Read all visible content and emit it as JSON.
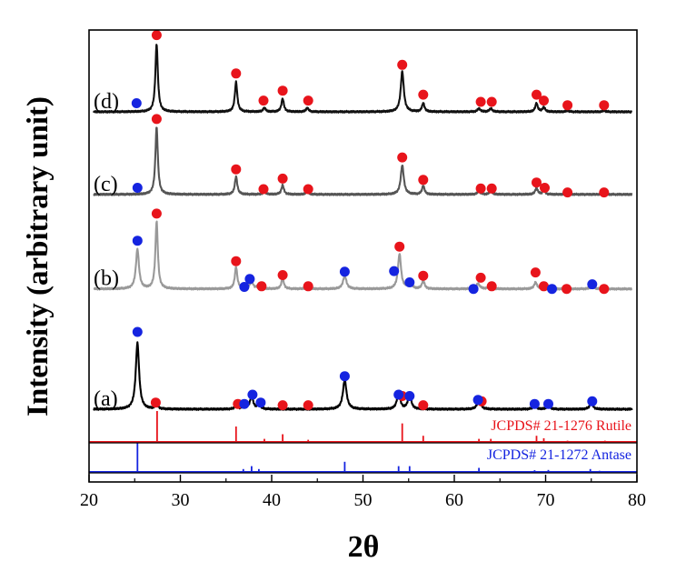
{
  "chart_data": {
    "type": "line",
    "title": "",
    "xlabel": "2θ",
    "ylabel": "Intensity (arbitrary unit)",
    "xlim": [
      20,
      80
    ],
    "xticks": [
      "20",
      "30",
      "40",
      "50",
      "60",
      "70",
      "80"
    ],
    "colors": {
      "rutile": "#e8141b",
      "anatase": "#1524e0",
      "curve_a": "#000000",
      "curve_b": "#999999",
      "curve_c": "#555555",
      "curve_d": "#111111"
    },
    "series": [
      {
        "name": "(a)",
        "baseline": 0.0,
        "peaks": [
          [
            25.3,
            1.0,
            0.22
          ],
          [
            27.4,
            0.09,
            0.15
          ],
          [
            36.1,
            0.06,
            0.15
          ],
          [
            37.0,
            0.07,
            0.2
          ],
          [
            37.8,
            0.2,
            0.2
          ],
          [
            38.6,
            0.08,
            0.18
          ],
          [
            48.0,
            0.44,
            0.24
          ],
          [
            53.9,
            0.27,
            0.2
          ],
          [
            55.1,
            0.24,
            0.2
          ],
          [
            62.7,
            0.15,
            0.22
          ],
          [
            68.8,
            0.06,
            0.2
          ],
          [
            70.3,
            0.06,
            0.2
          ],
          [
            75.0,
            0.1,
            0.2
          ]
        ],
        "rutile_markers": [
          [
            27.3,
            0.1
          ],
          [
            36.3,
            0.08
          ],
          [
            41.2,
            0.06
          ],
          [
            44.0,
            0.06
          ],
          [
            54.3,
            0.2
          ],
          [
            56.6,
            0.06
          ],
          [
            63.0,
            0.12
          ]
        ],
        "anatase_markers": [
          [
            25.3,
            1.17
          ],
          [
            37.0,
            0.08
          ],
          [
            37.9,
            0.22
          ],
          [
            38.8,
            0.1
          ],
          [
            48.0,
            0.5
          ],
          [
            53.9,
            0.22
          ],
          [
            55.1,
            0.2
          ],
          [
            62.6,
            0.14
          ],
          [
            68.8,
            0.08
          ],
          [
            70.3,
            0.08
          ],
          [
            75.1,
            0.12
          ]
        ]
      },
      {
        "name": "(b)",
        "baseline": 1.82,
        "peaks": [
          [
            25.3,
            0.6,
            0.2
          ],
          [
            27.4,
            1.02,
            0.16
          ],
          [
            36.1,
            0.33,
            0.16
          ],
          [
            37.0,
            0.06,
            0.2
          ],
          [
            37.8,
            0.11,
            0.2
          ],
          [
            38.6,
            0.06,
            0.18
          ],
          [
            41.2,
            0.16,
            0.16
          ],
          [
            43.9,
            0.05,
            0.16
          ],
          [
            48.0,
            0.2,
            0.22
          ],
          [
            54.0,
            0.53,
            0.2
          ],
          [
            55.1,
            0.13,
            0.2
          ],
          [
            56.6,
            0.13,
            0.16
          ],
          [
            62.6,
            0.08,
            0.22
          ],
          [
            63.9,
            0.05,
            0.2
          ],
          [
            68.9,
            0.1,
            0.18
          ],
          [
            69.8,
            0.06,
            0.18
          ],
          [
            75.1,
            0.05,
            0.2
          ]
        ],
        "rutile_markers": [
          [
            27.4,
            1.14
          ],
          [
            36.1,
            0.42
          ],
          [
            38.9,
            0.04
          ],
          [
            41.2,
            0.21
          ],
          [
            44.0,
            0.04
          ],
          [
            54.0,
            0.64
          ],
          [
            56.6,
            0.2
          ],
          [
            62.9,
            0.17
          ],
          [
            64.1,
            0.04
          ],
          [
            68.9,
            0.25
          ],
          [
            69.8,
            0.04
          ],
          [
            72.3,
            0.0
          ],
          [
            76.4,
            0.0
          ]
        ],
        "anatase_markers": [
          [
            25.3,
            0.73
          ],
          [
            37.0,
            0.03
          ],
          [
            37.6,
            0.15
          ],
          [
            48.0,
            0.26
          ],
          [
            53.4,
            0.27
          ],
          [
            55.1,
            0.1
          ],
          [
            62.1,
            0.0
          ],
          [
            70.7,
            0.0
          ],
          [
            75.1,
            0.07
          ]
        ]
      },
      {
        "name": "(c)",
        "baseline": 3.25,
        "peaks": [
          [
            27.4,
            1.02,
            0.16
          ],
          [
            36.1,
            0.27,
            0.16
          ],
          [
            39.2,
            0.05,
            0.16
          ],
          [
            41.2,
            0.14,
            0.16
          ],
          [
            43.9,
            0.05,
            0.16
          ],
          [
            54.3,
            0.44,
            0.2
          ],
          [
            56.6,
            0.13,
            0.16
          ],
          [
            62.7,
            0.05,
            0.18
          ],
          [
            64.0,
            0.05,
            0.18
          ],
          [
            69.0,
            0.1,
            0.16
          ],
          [
            69.8,
            0.06,
            0.16
          ],
          [
            72.4,
            0.02,
            0.16
          ],
          [
            76.4,
            0.02,
            0.16
          ]
        ],
        "rutile_markers": [
          [
            27.4,
            1.14
          ],
          [
            36.1,
            0.38
          ],
          [
            39.1,
            0.08
          ],
          [
            41.2,
            0.24
          ],
          [
            44.0,
            0.08
          ],
          [
            54.3,
            0.56
          ],
          [
            56.6,
            0.22
          ],
          [
            62.9,
            0.09
          ],
          [
            64.1,
            0.09
          ],
          [
            69.0,
            0.18
          ],
          [
            69.9,
            0.1
          ],
          [
            72.4,
            0.03
          ],
          [
            76.4,
            0.03
          ]
        ],
        "anatase_markers": [
          [
            25.3,
            0.1
          ]
        ]
      },
      {
        "name": "(d)",
        "baseline": 4.5,
        "peaks": [
          [
            27.4,
            1.03,
            0.16
          ],
          [
            36.1,
            0.45,
            0.16
          ],
          [
            39.2,
            0.06,
            0.16
          ],
          [
            41.2,
            0.2,
            0.16
          ],
          [
            43.9,
            0.06,
            0.16
          ],
          [
            54.3,
            0.61,
            0.2
          ],
          [
            56.6,
            0.13,
            0.16
          ],
          [
            62.7,
            0.05,
            0.18
          ],
          [
            64.0,
            0.05,
            0.18
          ],
          [
            69.0,
            0.13,
            0.16
          ],
          [
            69.8,
            0.07,
            0.16
          ],
          [
            72.4,
            0.02,
            0.16
          ],
          [
            76.4,
            0.02,
            0.16
          ]
        ],
        "rutile_markers": [
          [
            27.4,
            1.16
          ],
          [
            36.1,
            0.58
          ],
          [
            39.1,
            0.17
          ],
          [
            41.2,
            0.32
          ],
          [
            44.0,
            0.17
          ],
          [
            54.3,
            0.71
          ],
          [
            56.6,
            0.26
          ],
          [
            62.9,
            0.15
          ],
          [
            64.1,
            0.15
          ],
          [
            69.0,
            0.26
          ],
          [
            69.8,
            0.17
          ],
          [
            72.4,
            0.1
          ],
          [
            76.4,
            0.1
          ]
        ],
        "anatase_markers": [
          [
            25.2,
            0.13
          ]
        ]
      }
    ],
    "reference_patterns": [
      {
        "label": "JCPDS# 21-1276 Rutile",
        "color_key": "rutile",
        "lines": [
          [
            27.45,
            1.0
          ],
          [
            36.1,
            0.5
          ],
          [
            39.2,
            0.1
          ],
          [
            41.2,
            0.25
          ],
          [
            44.0,
            0.07
          ],
          [
            54.3,
            0.6
          ],
          [
            56.6,
            0.2
          ],
          [
            62.7,
            0.1
          ],
          [
            64.0,
            0.1
          ],
          [
            69.0,
            0.2
          ],
          [
            69.8,
            0.12
          ],
          [
            72.4,
            0.04
          ],
          [
            74.4,
            0.02
          ],
          [
            76.5,
            0.04
          ]
        ]
      },
      {
        "label": "JCPDS# 21-1272 Antase",
        "color_key": "anatase",
        "lines": [
          [
            25.3,
            1.0
          ],
          [
            36.9,
            0.1
          ],
          [
            37.8,
            0.2
          ],
          [
            38.6,
            0.1
          ],
          [
            48.0,
            0.35
          ],
          [
            53.9,
            0.2
          ],
          [
            55.1,
            0.2
          ],
          [
            62.7,
            0.14
          ],
          [
            68.8,
            0.06
          ],
          [
            70.3,
            0.07
          ],
          [
            74.9,
            0.1
          ],
          [
            75.9,
            0.04
          ]
        ]
      }
    ]
  }
}
